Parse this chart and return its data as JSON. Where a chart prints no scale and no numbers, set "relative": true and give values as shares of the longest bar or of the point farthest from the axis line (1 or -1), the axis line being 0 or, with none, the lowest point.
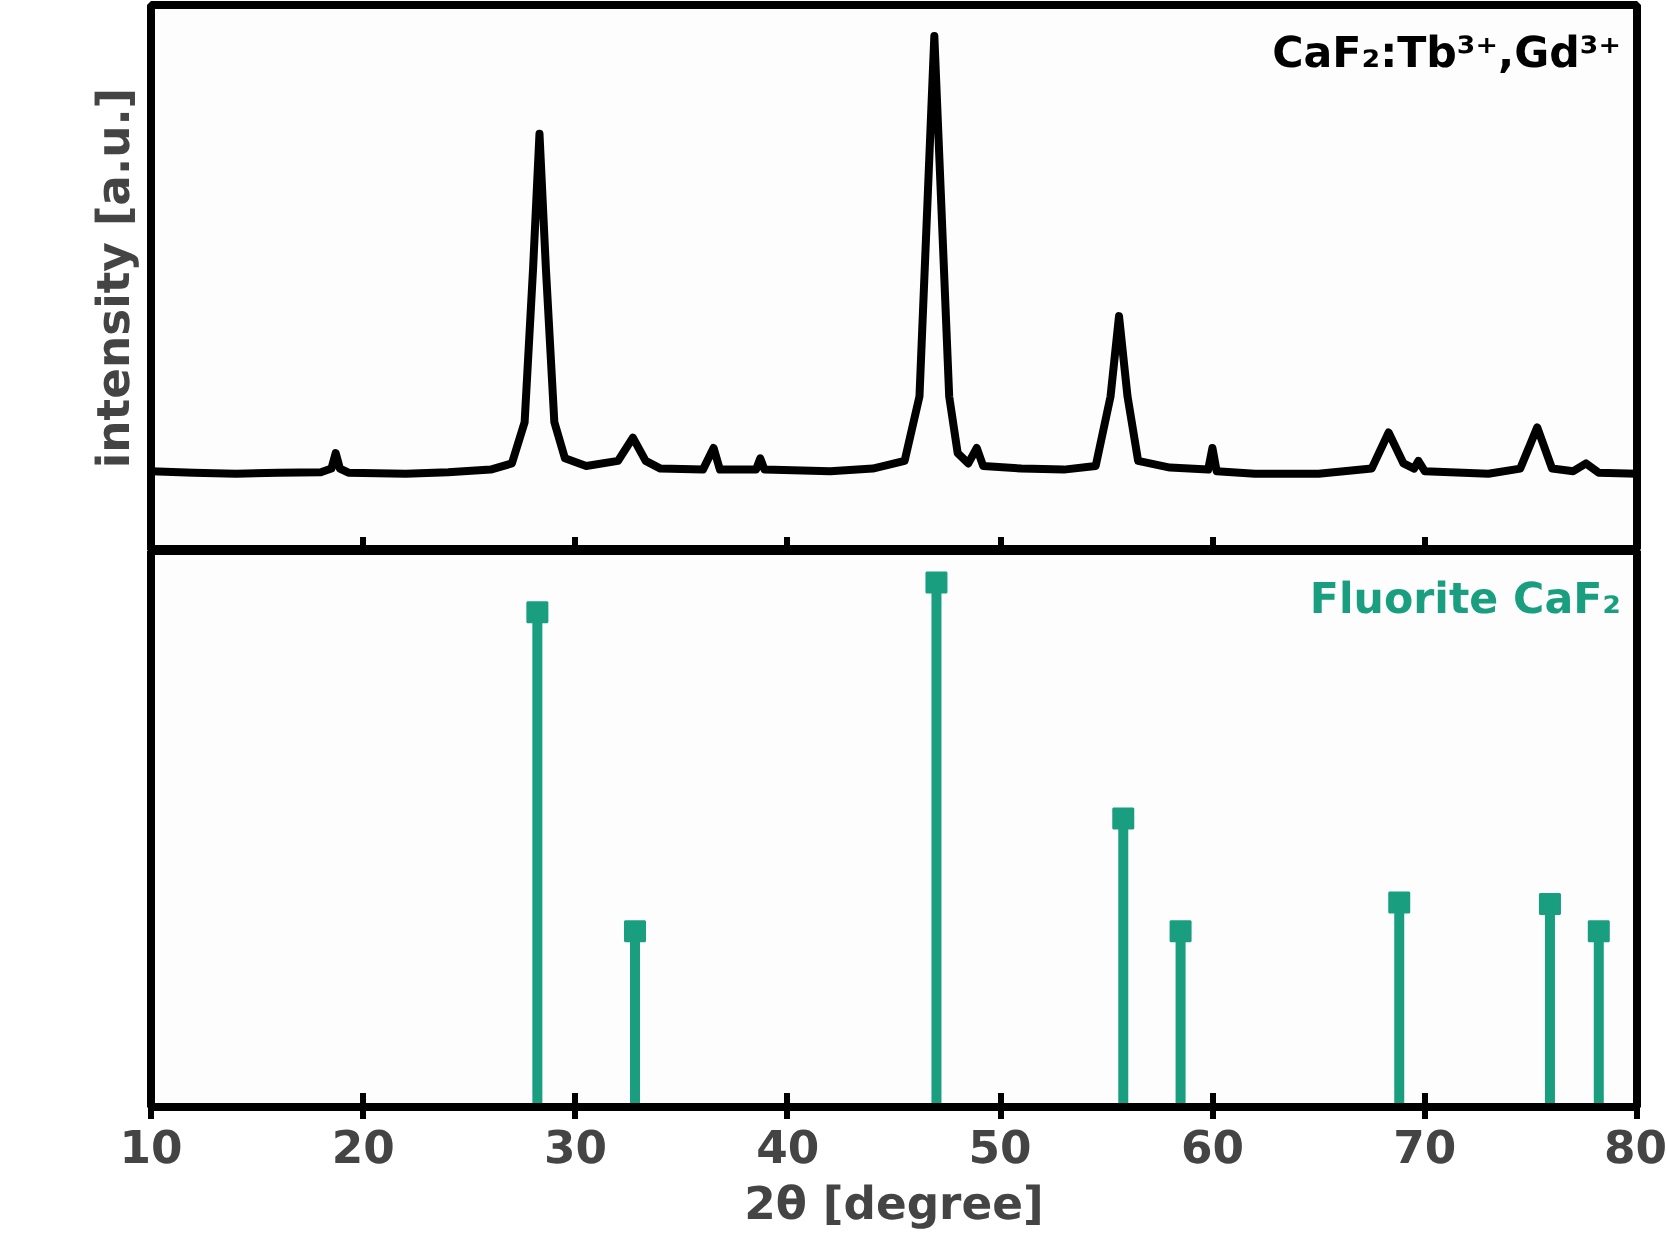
{
  "chart_data": [
    {
      "type": "line",
      "relative": true,
      "ylabel": "intensity [a.u.]",
      "xlim": [
        10,
        80
      ],
      "xticks": [
        20,
        30,
        40,
        50,
        60,
        70
      ],
      "tick_labels": false,
      "grid": false,
      "marker": "none",
      "line_style": "solid",
      "annotations": [
        "CaF₂:Tb³⁺,Gd³⁺"
      ],
      "series": [
        {
          "color": "#000000",
          "x": [
            10,
            12,
            14,
            16,
            18,
            18.5,
            18.7,
            18.9,
            19.3,
            22,
            24,
            26,
            27,
            27.6,
            28.0,
            28.3,
            28.6,
            29.0,
            29.5,
            30.5,
            32,
            32.7,
            33.3,
            34,
            36,
            36.5,
            36.8,
            38.5,
            38.7,
            38.9,
            42,
            44,
            45.5,
            46.2,
            46.6,
            46.9,
            47.2,
            47.6,
            48,
            48.5,
            48.9,
            49.2,
            51,
            53,
            54.5,
            55.2,
            55.6,
            56.0,
            56.5,
            58,
            59.8,
            60,
            60.2,
            62,
            65,
            67.5,
            68.3,
            69,
            69.5,
            69.7,
            70,
            73,
            74.5,
            75.3,
            76,
            77,
            77.6,
            78.2,
            80
          ],
          "values": [
            0.155,
            0.152,
            0.15,
            0.152,
            0.153,
            0.16,
            0.19,
            0.16,
            0.152,
            0.15,
            0.153,
            0.158,
            0.17,
            0.25,
            0.55,
            0.81,
            0.55,
            0.25,
            0.18,
            0.165,
            0.175,
            0.22,
            0.175,
            0.16,
            0.158,
            0.2,
            0.158,
            0.158,
            0.18,
            0.158,
            0.155,
            0.16,
            0.175,
            0.3,
            0.7,
            1.0,
            0.7,
            0.3,
            0.19,
            0.17,
            0.2,
            0.165,
            0.16,
            0.158,
            0.165,
            0.3,
            0.456,
            0.3,
            0.175,
            0.162,
            0.158,
            0.2,
            0.155,
            0.15,
            0.15,
            0.16,
            0.23,
            0.17,
            0.16,
            0.175,
            0.155,
            0.15,
            0.16,
            0.24,
            0.16,
            0.155,
            0.17,
            0.152,
            0.15
          ]
        }
      ]
    },
    {
      "type": "lollipop",
      "relative": true,
      "xlabel": "2θ [degree]",
      "xlim": [
        10,
        80
      ],
      "xticks": [
        10,
        20,
        30,
        40,
        50,
        60,
        70,
        80
      ],
      "tick_labels": "x",
      "grid": false,
      "marker": "square",
      "series": [
        {
          "name": "Fluorite CaF₂",
          "color": "#1a9e80",
          "x": [
            28.2,
            32.8,
            47.0,
            55.8,
            58.5,
            68.8,
            75.9,
            78.2
          ],
          "values": [
            0.943,
            0.335,
            1.0,
            0.55,
            0.335,
            0.39,
            0.387,
            0.335
          ]
        }
      ]
    }
  ]
}
